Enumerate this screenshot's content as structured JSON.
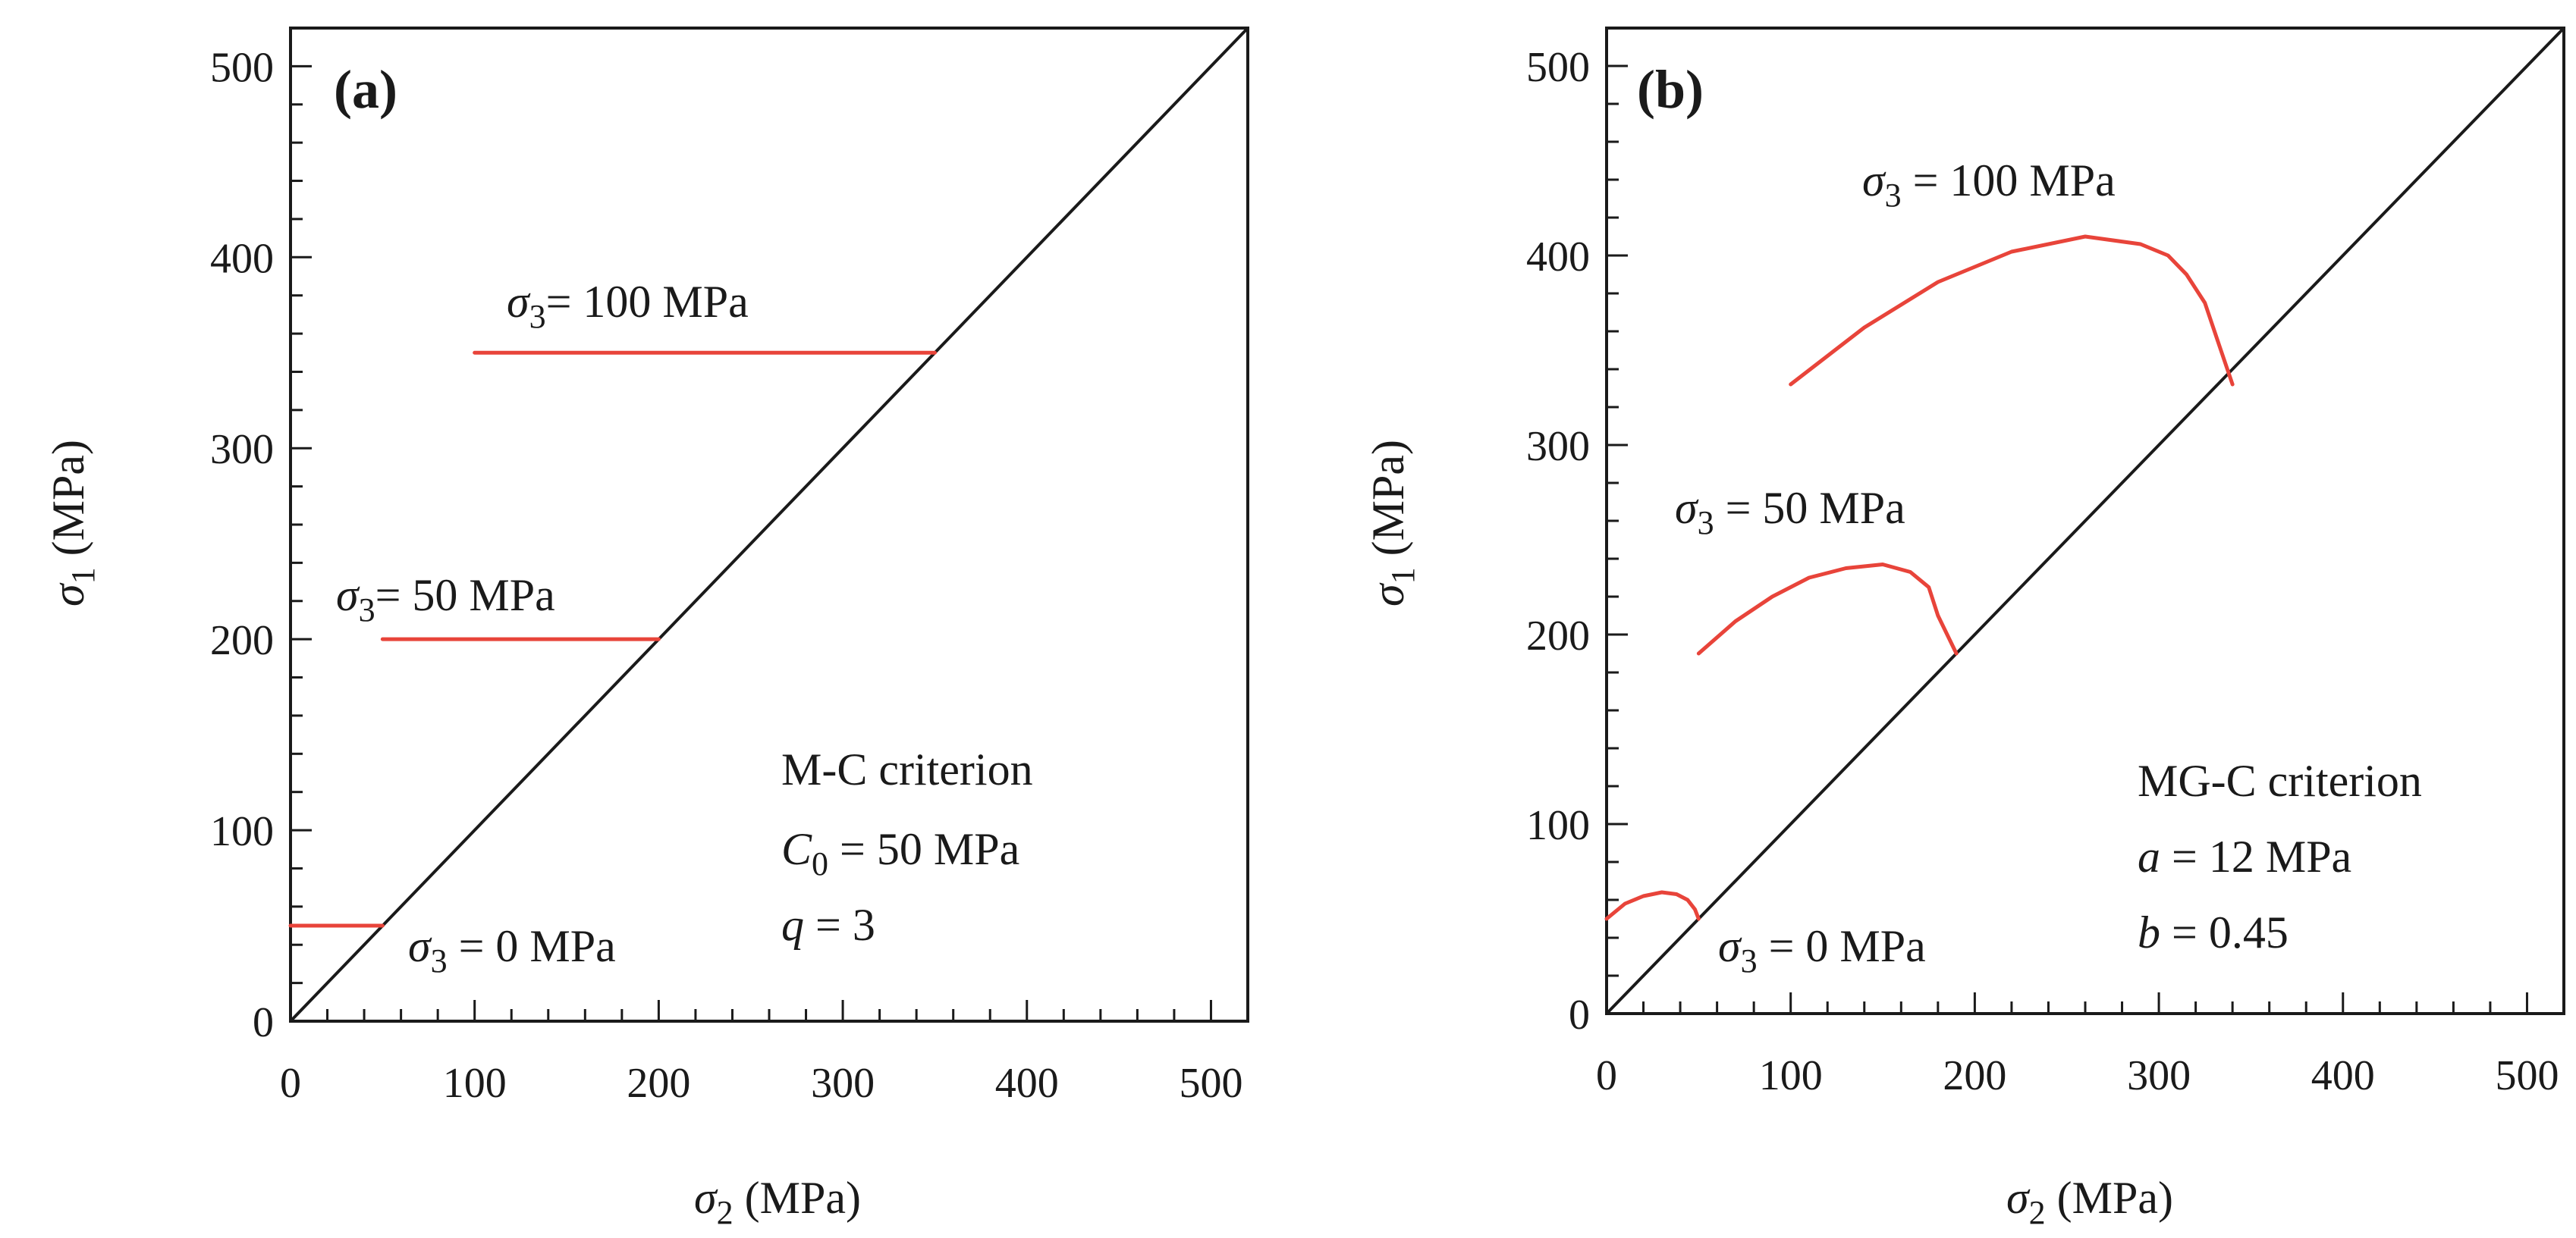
{
  "chart_data": [
    {
      "type": "line",
      "panel_label": "(a)",
      "xlabel": "σ2 (MPa)",
      "ylabel": "σ1 (MPa)",
      "xlim": [
        0,
        520
      ],
      "ylim": [
        0,
        520
      ],
      "xticks": [
        0,
        100,
        200,
        300,
        400,
        500
      ],
      "yticks": [
        0,
        100,
        200,
        300,
        400,
        500
      ],
      "legend": "none",
      "diagonal": {
        "name": "σ1 = σ2",
        "x": [
          0,
          520
        ],
        "y": [
          0,
          520
        ],
        "color": "#1a1a1a"
      },
      "series": [
        {
          "name": "σ3 = 0 MPa",
          "label_sym": "σ",
          "label_sub": "3",
          "label_rest": " = 0 MPa",
          "x": [
            0,
            50
          ],
          "y": [
            50,
            50
          ],
          "color": "#e8443a"
        },
        {
          "name": "σ3 = 50 MPa",
          "label_sym": "σ",
          "label_sub": "3",
          "label_rest": "= 50 MPa",
          "x": [
            50,
            200
          ],
          "y": [
            200,
            200
          ],
          "color": "#e8443a"
        },
        {
          "name": "σ3 = 100 MPa",
          "label_sym": "σ",
          "label_sub": "3",
          "label_rest": "= 100 MPa",
          "x": [
            100,
            350
          ],
          "y": [
            350,
            350
          ],
          "color": "#e8443a"
        }
      ],
      "criterion": {
        "title": "M-C criterion",
        "line1_sym": "C",
        "line1_sub": "0",
        "line1_rest": " = 50 MPa",
        "line2_sym": "q",
        "line2_rest": " = 3"
      }
    },
    {
      "type": "line",
      "panel_label": "(b)",
      "xlabel": "σ2 (MPa)",
      "ylabel": "σ1 (MPa)",
      "xlim": [
        0,
        520
      ],
      "ylim": [
        0,
        520
      ],
      "xticks": [
        0,
        100,
        200,
        300,
        400,
        500
      ],
      "yticks": [
        0,
        100,
        200,
        300,
        400,
        500
      ],
      "legend": "none",
      "diagonal": {
        "name": "σ1 = σ2",
        "x": [
          0,
          520
        ],
        "y": [
          0,
          520
        ],
        "color": "#1a1a1a"
      },
      "series": [
        {
          "name": "σ3 = 0 MPa",
          "label_sym": "σ",
          "label_sub": "3",
          "label_rest": " = 0 MPa",
          "x": [
            0,
            10,
            20,
            30,
            38,
            44,
            48,
            50
          ],
          "y": [
            50,
            58,
            62,
            64,
            63,
            60,
            55,
            50
          ],
          "color": "#e8443a"
        },
        {
          "name": "σ3 = 50 MPa",
          "label_sym": "σ",
          "label_sub": "3",
          "label_rest": " = 50 MPa",
          "x": [
            50,
            70,
            90,
            110,
            130,
            150,
            165,
            175,
            180,
            190
          ],
          "y": [
            190,
            207,
            220,
            230,
            235,
            237,
            233,
            225,
            210,
            190
          ],
          "color": "#e8443a"
        },
        {
          "name": "σ3 = 100 MPa",
          "label_sym": "σ",
          "label_sub": "3",
          "label_rest": " = 100 MPa",
          "x": [
            100,
            140,
            180,
            220,
            260,
            290,
            305,
            315,
            325,
            333,
            340
          ],
          "y": [
            332,
            362,
            386,
            402,
            410,
            406,
            400,
            390,
            375,
            352,
            332
          ],
          "color": "#e8443a"
        }
      ],
      "criterion": {
        "title": "MG-C criterion",
        "line1_sym": "a",
        "line1_rest": " = 12 MPa",
        "line2_sym": "b",
        "line2_rest": " = 0.45"
      }
    }
  ]
}
